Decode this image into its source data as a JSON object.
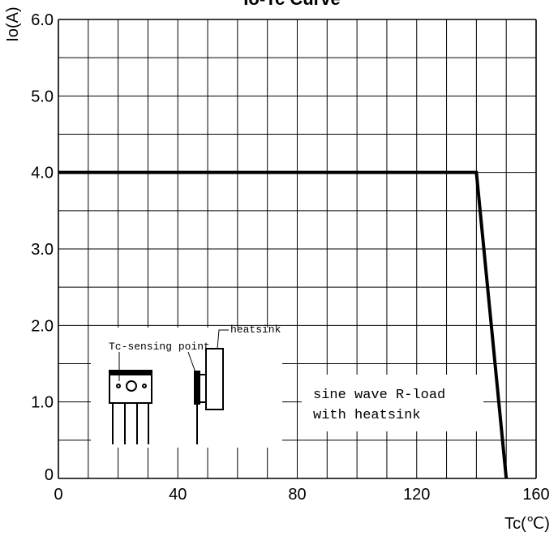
{
  "chart_data": {
    "type": "line",
    "title": "Io-Tc Curve",
    "xlabel": "Tc(℃)",
    "ylabel": "Io(A)",
    "xlim": [
      0,
      160
    ],
    "ylim": [
      0,
      6.0
    ],
    "x_ticks": [
      "0",
      "40",
      "80",
      "120",
      "160"
    ],
    "y_ticks": [
      "0",
      "1.0",
      "2.0",
      "3.0",
      "4.0",
      "5.0",
      "6.0"
    ],
    "grid": true,
    "series": [
      {
        "x": [
          0,
          140,
          150
        ],
        "y": [
          4.0,
          4.0,
          0
        ]
      }
    ],
    "annotations": {
      "tc_sensing_point": "Tc-sensing point",
      "heatsink": "heatsink",
      "condition_line1": "sine wave R-load",
      "condition_line2": "with heatsink"
    }
  }
}
